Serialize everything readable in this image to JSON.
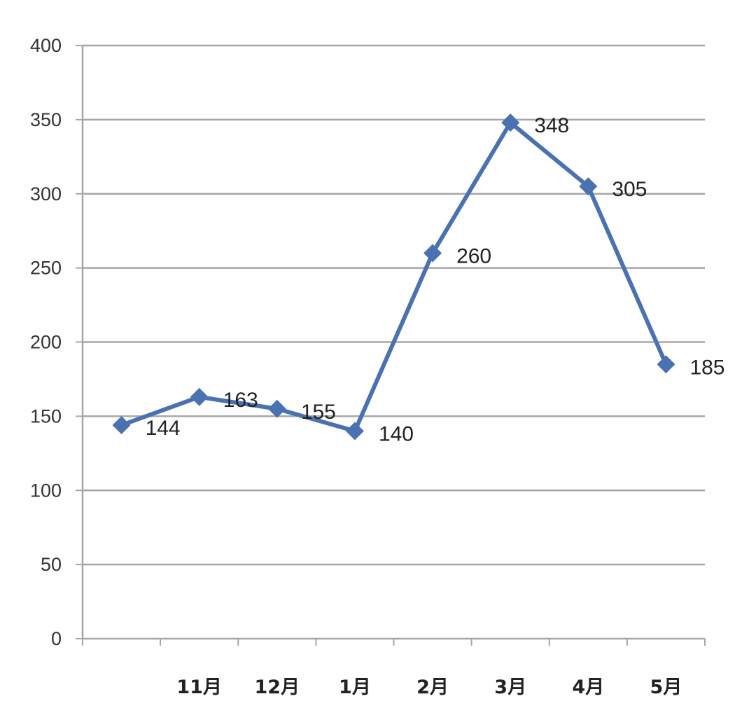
{
  "chart_data": {
    "type": "line",
    "title": "",
    "xlabel": "",
    "ylabel": "",
    "ylim": [
      0,
      400
    ],
    "yticks": [
      "0",
      "50",
      "100",
      "150",
      "200",
      "250",
      "300",
      "350",
      "400"
    ],
    "grid": true,
    "legend": "none",
    "categories": [
      "",
      "11月",
      "12月",
      "1月",
      "2月",
      "3月",
      "4月",
      "5月"
    ],
    "series": [
      {
        "values": [
          144,
          163,
          155,
          140,
          260,
          348,
          305,
          185
        ],
        "labels": [
          "144",
          "163",
          "155",
          "140",
          "260",
          "348",
          "305",
          "185"
        ],
        "color": "#4a72b0",
        "marker": "diamond"
      }
    ],
    "colors": {
      "grid": "#a6a6a6",
      "axis": "#a6a6a6",
      "line": "#4a72b0"
    }
  }
}
